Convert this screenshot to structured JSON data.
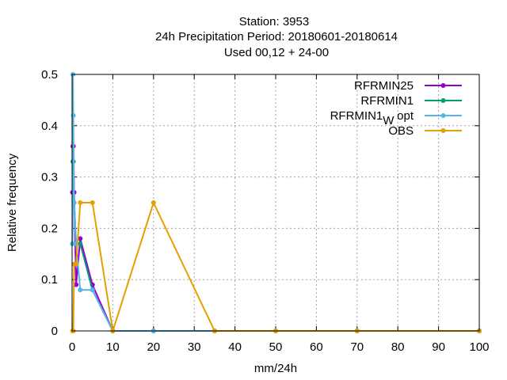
{
  "chart_data": {
    "type": "line",
    "title_lines": [
      "Station:     3953",
      "24h Precipitation  Period: 20180601-20180614",
      "Used  00,12  + 24-00"
    ],
    "xlabel": "mm/24h",
    "ylabel": "Relative frequency",
    "xlim": [
      0,
      100
    ],
    "ylim": [
      0,
      0.5
    ],
    "xticks": [
      "0",
      "10",
      "20",
      "30",
      "40",
      "50",
      "60",
      "70",
      "80",
      "90",
      "100"
    ],
    "yticks": [
      "0",
      "0.1",
      "0.2",
      "0.3",
      "0.4",
      "0.5"
    ],
    "grid": true,
    "legend_position": "top-right",
    "series": [
      {
        "name": "RFRMIN25",
        "color": "#9400d3",
        "x": [
          0.1,
          0.2,
          0.3,
          0.5,
          1,
          2,
          5,
          10,
          20,
          35,
          50,
          70,
          100
        ],
        "y": [
          0.27,
          0.36,
          0.36,
          0.27,
          0.09,
          0.18,
          0.09,
          0.0,
          0.0,
          0.0,
          0.0,
          0.0,
          0.0
        ]
      },
      {
        "name": "RFRMIN1",
        "color": "#009e73",
        "x": [
          0.1,
          0.2,
          0.3,
          0.5,
          1,
          2,
          5,
          10,
          20,
          35,
          50,
          70,
          100
        ],
        "y": [
          0.17,
          0.33,
          0.33,
          0.25,
          0.17,
          0.17,
          0.08,
          0.0,
          0.0,
          0.0,
          0.0,
          0.0,
          0.0
        ]
      },
      {
        "name": "RFRMIN1",
        "name_subscript": "W",
        "name_suffix": "opt",
        "color": "#56b4e9",
        "x": [
          0.1,
          0.2,
          0.3,
          0.5,
          1,
          2,
          5,
          10,
          20,
          35,
          50,
          70,
          100
        ],
        "y": [
          0.17,
          0.5,
          0.42,
          0.25,
          0.17,
          0.08,
          0.08,
          0.0,
          0.0,
          0.0,
          0.0,
          0.0,
          0.0
        ]
      },
      {
        "name": "OBS",
        "color": "#e69f00",
        "x": [
          0.1,
          0.2,
          0.3,
          0.5,
          1,
          2,
          5,
          10,
          20,
          35,
          50,
          70,
          100
        ],
        "y": [
          0.0,
          0.0,
          0.0,
          0.13,
          0.13,
          0.25,
          0.25,
          0.0,
          0.25,
          0.0,
          0.0,
          0.0,
          0.0
        ]
      }
    ]
  }
}
